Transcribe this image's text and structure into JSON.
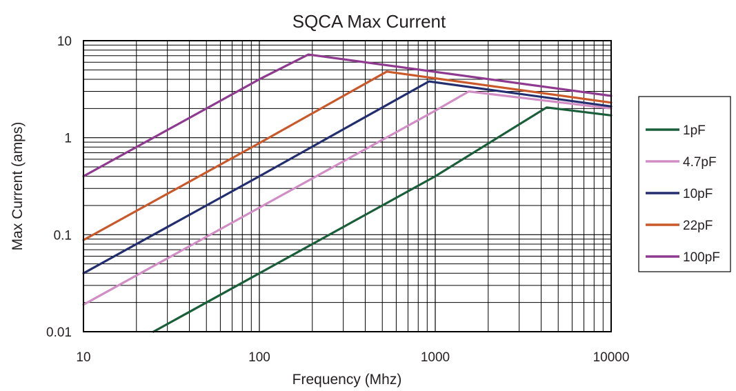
{
  "chart_data": {
    "type": "line",
    "title": "SQCA Max Current",
    "xlabel": "Frequency (Mhz)",
    "ylabel": "Max Current (amps)",
    "x_scale": "log",
    "y_scale": "log",
    "xlim": [
      10,
      10000
    ],
    "ylim": [
      0.01,
      10
    ],
    "x_ticks": [
      "10",
      "100",
      "1000",
      "10000"
    ],
    "y_ticks": [
      "0.01",
      "0.1",
      "1",
      "10"
    ],
    "grid": true,
    "legend_position": "right",
    "series": [
      {
        "name": "1pF",
        "color": "#1a5e3a",
        "points": [
          [
            25,
            0.01
          ],
          [
            100,
            0.04
          ],
          [
            1000,
            0.4
          ],
          [
            4300,
            2.05
          ],
          [
            10000,
            1.7
          ]
        ]
      },
      {
        "name": "4.7pF",
        "color": "#d08ec4",
        "points": [
          [
            10,
            0.019
          ],
          [
            100,
            0.19
          ],
          [
            1000,
            1.9
          ],
          [
            1550,
            3.0
          ],
          [
            10000,
            2.0
          ]
        ]
      },
      {
        "name": "10pF",
        "color": "#232e6e",
        "points": [
          [
            10,
            0.04
          ],
          [
            100,
            0.4
          ],
          [
            920,
            3.8
          ],
          [
            10000,
            2.1
          ]
        ]
      },
      {
        "name": "22pF",
        "color": "#c9582a",
        "points": [
          [
            10,
            0.088
          ],
          [
            100,
            0.88
          ],
          [
            530,
            4.8
          ],
          [
            10000,
            2.3
          ]
        ]
      },
      {
        "name": "100pF",
        "color": "#8e3a8e",
        "points": [
          [
            10,
            0.4
          ],
          [
            100,
            4.0
          ],
          [
            190,
            7.2
          ],
          [
            10000,
            2.7
          ]
        ]
      }
    ]
  }
}
